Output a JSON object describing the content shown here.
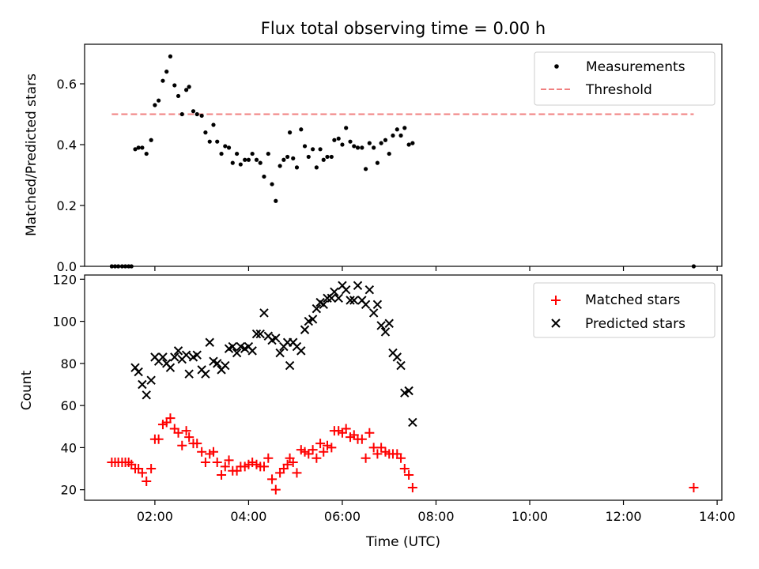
{
  "title": "Flux total observing time = 0.00 h",
  "colors": {
    "measurements": "#000000",
    "threshold": "#f08080",
    "matched": "#ff0000",
    "predicted": "#000000"
  },
  "chart_data": [
    {
      "type": "scatter",
      "ylabel": "Matched/Predicted stars",
      "xlim": [
        0.5,
        14.1
      ],
      "ylim": [
        0,
        0.73
      ],
      "yticks": [
        "0.0",
        "0.2",
        "0.4",
        "0.6"
      ],
      "legend_position": "top-right",
      "series": [
        {
          "name": "Measurements",
          "marker": "dot",
          "points": [
            [
              1.08,
              0
            ],
            [
              1.15,
              0
            ],
            [
              1.22,
              0
            ],
            [
              1.3,
              0
            ],
            [
              1.37,
              0
            ],
            [
              1.44,
              0
            ],
            [
              1.5,
              0
            ],
            [
              1.58,
              0.385
            ],
            [
              1.65,
              0.39
            ],
            [
              1.73,
              0.39
            ],
            [
              1.82,
              0.37
            ],
            [
              1.92,
              0.415
            ],
            [
              2.0,
              0.53
            ],
            [
              2.08,
              0.545
            ],
            [
              2.17,
              0.61
            ],
            [
              2.25,
              0.64
            ],
            [
              2.33,
              0.69
            ],
            [
              2.42,
              0.595
            ],
            [
              2.5,
              0.56
            ],
            [
              2.58,
              0.5
            ],
            [
              2.67,
              0.58
            ],
            [
              2.73,
              0.59
            ],
            [
              2.82,
              0.51
            ],
            [
              2.9,
              0.5
            ],
            [
              3.0,
              0.495
            ],
            [
              3.08,
              0.44
            ],
            [
              3.17,
              0.41
            ],
            [
              3.25,
              0.465
            ],
            [
              3.33,
              0.41
            ],
            [
              3.42,
              0.37
            ],
            [
              3.5,
              0.395
            ],
            [
              3.58,
              0.39
            ],
            [
              3.66,
              0.34
            ],
            [
              3.75,
              0.37
            ],
            [
              3.83,
              0.335
            ],
            [
              3.92,
              0.35
            ],
            [
              4.0,
              0.35
            ],
            [
              4.08,
              0.37
            ],
            [
              4.17,
              0.35
            ],
            [
              4.25,
              0.34
            ],
            [
              4.33,
              0.295
            ],
            [
              4.42,
              0.37
            ],
            [
              4.5,
              0.27
            ],
            [
              4.58,
              0.215
            ],
            [
              4.67,
              0.33
            ],
            [
              4.75,
              0.35
            ],
            [
              4.83,
              0.36
            ],
            [
              4.88,
              0.44
            ],
            [
              4.95,
              0.355
            ],
            [
              5.03,
              0.325
            ],
            [
              5.12,
              0.45
            ],
            [
              5.2,
              0.395
            ],
            [
              5.28,
              0.36
            ],
            [
              5.37,
              0.385
            ],
            [
              5.45,
              0.325
            ],
            [
              5.53,
              0.385
            ],
            [
              5.6,
              0.35
            ],
            [
              5.68,
              0.36
            ],
            [
              5.77,
              0.36
            ],
            [
              5.83,
              0.415
            ],
            [
              5.92,
              0.42
            ],
            [
              6.0,
              0.4
            ],
            [
              6.08,
              0.455
            ],
            [
              6.17,
              0.41
            ],
            [
              6.25,
              0.395
            ],
            [
              6.33,
              0.39
            ],
            [
              6.42,
              0.39
            ],
            [
              6.5,
              0.32
            ],
            [
              6.58,
              0.405
            ],
            [
              6.67,
              0.39
            ],
            [
              6.75,
              0.34
            ],
            [
              6.83,
              0.405
            ],
            [
              6.92,
              0.415
            ],
            [
              7.0,
              0.37
            ],
            [
              7.08,
              0.43
            ],
            [
              7.17,
              0.45
            ],
            [
              7.25,
              0.43
            ],
            [
              7.33,
              0.455
            ],
            [
              7.42,
              0.4
            ],
            [
              7.5,
              0.405
            ],
            [
              13.5,
              0
            ]
          ]
        },
        {
          "name": "Threshold",
          "type": "line",
          "style": "dashed",
          "x": [
            1.08,
            13.5
          ],
          "y": [
            0.5,
            0.5
          ]
        }
      ]
    },
    {
      "type": "scatter",
      "xlabel": "Time (UTC)",
      "ylabel": "Count",
      "xlim": [
        0.5,
        14.1
      ],
      "ylim": [
        15,
        122
      ],
      "yticks": [
        "20",
        "40",
        "60",
        "80",
        "100",
        "120"
      ],
      "xtick_values": [
        2,
        4,
        6,
        8,
        10,
        12,
        14
      ],
      "xtick_labels": [
        "02:00",
        "04:00",
        "06:00",
        "08:00",
        "10:00",
        "12:00",
        "14:00"
      ],
      "legend_position": "top-right",
      "series": [
        {
          "name": "Matched stars",
          "marker": "plus",
          "points": [
            [
              1.08,
              33
            ],
            [
              1.15,
              33
            ],
            [
              1.22,
              33
            ],
            [
              1.3,
              33
            ],
            [
              1.37,
              33
            ],
            [
              1.44,
              33
            ],
            [
              1.5,
              32
            ],
            [
              1.58,
              30
            ],
            [
              1.65,
              30
            ],
            [
              1.73,
              28
            ],
            [
              1.82,
              24
            ],
            [
              1.92,
              30
            ],
            [
              2.0,
              44
            ],
            [
              2.08,
              44
            ],
            [
              2.17,
              51
            ],
            [
              2.25,
              52
            ],
            [
              2.33,
              54
            ],
            [
              2.42,
              49
            ],
            [
              2.5,
              47
            ],
            [
              2.58,
              41
            ],
            [
              2.67,
              48
            ],
            [
              2.73,
              45
            ],
            [
              2.82,
              42
            ],
            [
              2.9,
              42
            ],
            [
              3.0,
              38
            ],
            [
              3.08,
              33
            ],
            [
              3.17,
              37
            ],
            [
              3.25,
              38
            ],
            [
              3.33,
              33
            ],
            [
              3.42,
              27
            ],
            [
              3.5,
              31
            ],
            [
              3.58,
              34
            ],
            [
              3.66,
              29
            ],
            [
              3.75,
              29
            ],
            [
              3.83,
              31
            ],
            [
              3.92,
              31
            ],
            [
              4.0,
              32
            ],
            [
              4.08,
              33
            ],
            [
              4.17,
              32
            ],
            [
              4.25,
              31
            ],
            [
              4.33,
              31
            ],
            [
              4.42,
              35
            ],
            [
              4.5,
              25
            ],
            [
              4.58,
              20
            ],
            [
              4.67,
              28
            ],
            [
              4.75,
              30
            ],
            [
              4.83,
              32
            ],
            [
              4.88,
              35
            ],
            [
              4.95,
              33
            ],
            [
              5.03,
              28
            ],
            [
              5.12,
              39
            ],
            [
              5.2,
              38
            ],
            [
              5.28,
              37
            ],
            [
              5.37,
              39
            ],
            [
              5.45,
              35
            ],
            [
              5.53,
              42
            ],
            [
              5.6,
              38
            ],
            [
              5.68,
              41
            ],
            [
              5.77,
              40
            ],
            [
              5.83,
              48
            ],
            [
              5.92,
              48
            ],
            [
              6.0,
              47
            ],
            [
              6.08,
              49
            ],
            [
              6.17,
              45
            ],
            [
              6.25,
              46
            ],
            [
              6.33,
              44
            ],
            [
              6.42,
              44
            ],
            [
              6.5,
              35
            ],
            [
              6.58,
              47
            ],
            [
              6.67,
              40
            ],
            [
              6.75,
              37
            ],
            [
              6.83,
              40
            ],
            [
              6.92,
              38
            ],
            [
              7.0,
              37
            ],
            [
              7.08,
              37
            ],
            [
              7.17,
              37
            ],
            [
              7.25,
              35
            ],
            [
              7.33,
              30
            ],
            [
              7.42,
              27
            ],
            [
              7.5,
              21
            ],
            [
              13.5,
              21
            ]
          ]
        },
        {
          "name": "Predicted stars",
          "marker": "x",
          "points": [
            [
              1.58,
              78
            ],
            [
              1.65,
              76
            ],
            [
              1.73,
              70
            ],
            [
              1.82,
              65
            ],
            [
              1.92,
              72
            ],
            [
              2.0,
              83
            ],
            [
              2.08,
              81
            ],
            [
              2.17,
              83
            ],
            [
              2.25,
              80
            ],
            [
              2.33,
              78
            ],
            [
              2.42,
              83
            ],
            [
              2.5,
              86
            ],
            [
              2.58,
              82
            ],
            [
              2.67,
              84
            ],
            [
              2.73,
              75
            ],
            [
              2.82,
              83
            ],
            [
              2.9,
              84
            ],
            [
              3.0,
              77
            ],
            [
              3.08,
              75
            ],
            [
              3.17,
              90
            ],
            [
              3.25,
              81
            ],
            [
              3.33,
              80
            ],
            [
              3.42,
              77
            ],
            [
              3.5,
              79
            ],
            [
              3.58,
              87
            ],
            [
              3.66,
              88
            ],
            [
              3.75,
              85
            ],
            [
              3.83,
              88
            ],
            [
              3.92,
              87
            ],
            [
              4.0,
              88
            ],
            [
              4.08,
              86
            ],
            [
              4.17,
              94
            ],
            [
              4.25,
              94
            ],
            [
              4.33,
              104
            ],
            [
              4.42,
              93
            ],
            [
              4.5,
              91
            ],
            [
              4.58,
              92
            ],
            [
              4.67,
              85
            ],
            [
              4.75,
              88
            ],
            [
              4.83,
              90
            ],
            [
              4.88,
              79
            ],
            [
              4.95,
              90
            ],
            [
              5.03,
              88
            ],
            [
              5.12,
              86
            ],
            [
              5.2,
              96
            ],
            [
              5.28,
              100
            ],
            [
              5.37,
              101
            ],
            [
              5.45,
              106
            ],
            [
              5.53,
              109
            ],
            [
              5.6,
              108
            ],
            [
              5.68,
              111
            ],
            [
              5.77,
              111
            ],
            [
              5.83,
              114
            ],
            [
              5.92,
              111
            ],
            [
              6.0,
              117
            ],
            [
              6.08,
              115
            ],
            [
              6.17,
              110
            ],
            [
              6.25,
              110
            ],
            [
              6.33,
              117
            ],
            [
              6.42,
              110
            ],
            [
              6.5,
              108
            ],
            [
              6.58,
              115
            ],
            [
              6.67,
              104
            ],
            [
              6.75,
              108
            ],
            [
              6.83,
              98
            ],
            [
              6.92,
              95
            ],
            [
              7.0,
              99
            ],
            [
              7.08,
              85
            ],
            [
              7.17,
              83
            ],
            [
              7.25,
              79
            ],
            [
              7.33,
              66
            ],
            [
              7.42,
              67
            ],
            [
              7.5,
              52
            ]
          ]
        }
      ]
    }
  ]
}
